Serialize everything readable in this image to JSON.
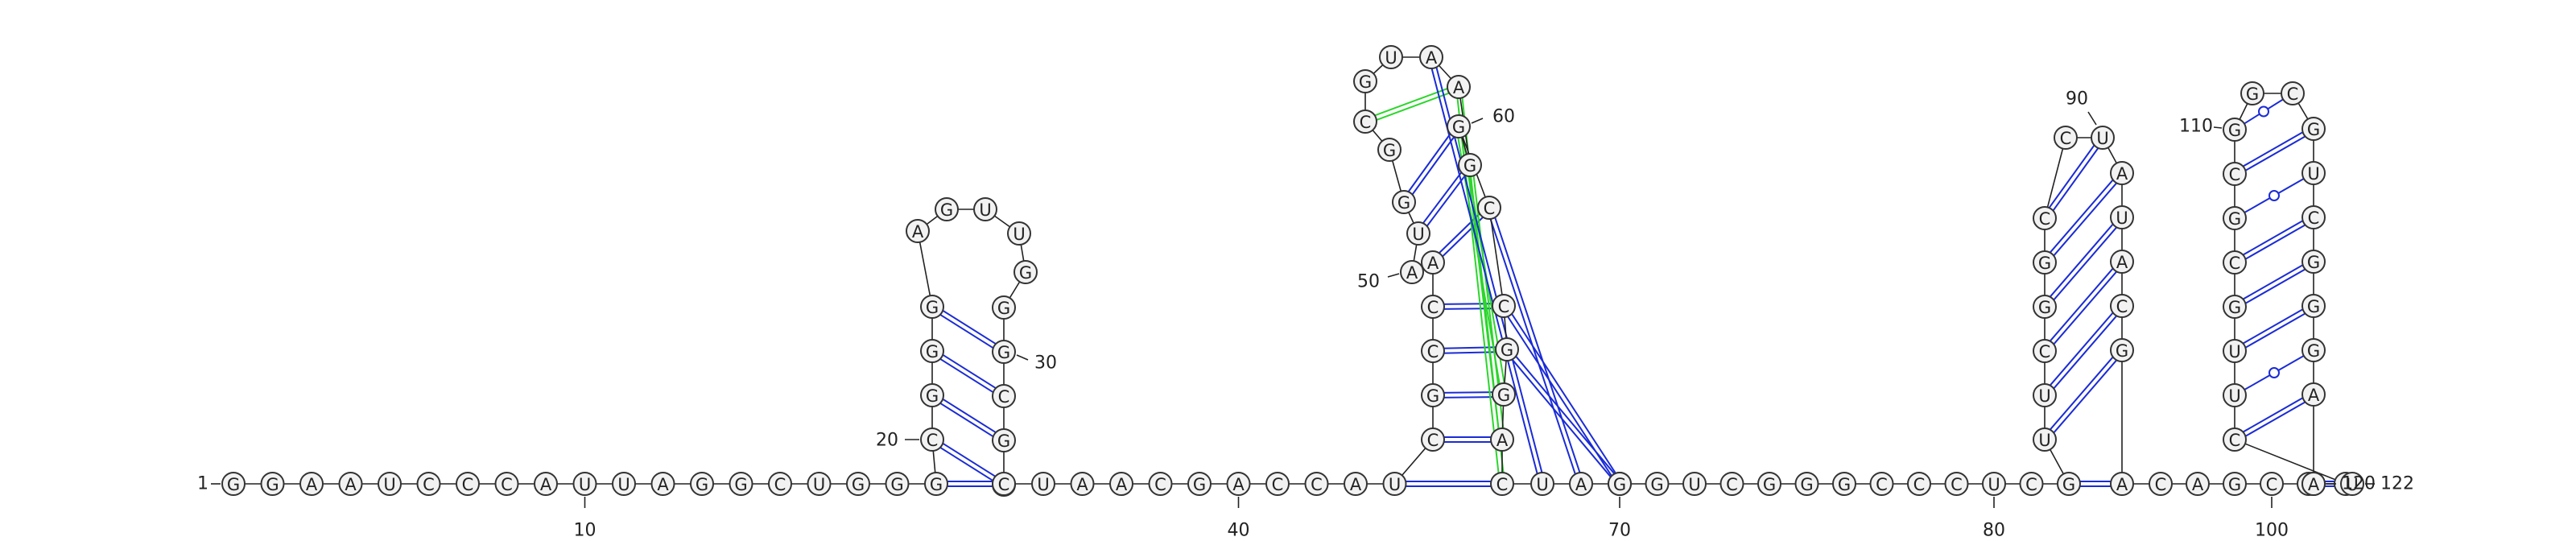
{
  "sequence": "GGAAUCCCAUUAGGCUGGGCGGGAGUUGGGCGCCUAACGACCAUCGCCAAUGGCGUAAGGCCGGACUAGGGUCGGGCCCUCGUUCGGCCUAUACGACAGCCCCUUGCGCGGCGUCGGGAUAUC",
  "numbering": [
    {
      "label": "1",
      "pos": 1
    },
    {
      "label": "10",
      "pos": 10
    },
    {
      "label": "20",
      "pos": 20
    },
    {
      "label": "30",
      "pos": 30
    },
    {
      "label": "40",
      "pos": 40
    },
    {
      "label": "50",
      "pos": 50
    },
    {
      "label": "60",
      "pos": 60
    },
    {
      "label": "70",
      "pos": 70
    },
    {
      "label": "80",
      "pos": 80
    },
    {
      "label": "90",
      "pos": 90
    },
    {
      "label": "100",
      "pos": 100
    },
    {
      "label": "110",
      "pos": 110
    },
    {
      "label": "120",
      "pos": 120
    },
    {
      "label": "122",
      "pos": 122
    }
  ],
  "base_pairs": [
    {
      "i": 19,
      "j": 34,
      "type": "canonical"
    },
    {
      "i": 20,
      "j": 33,
      "type": "canonical"
    },
    {
      "i": 21,
      "j": 32,
      "type": "canonical"
    },
    {
      "i": 22,
      "j": 31,
      "type": "canonical"
    },
    {
      "i": 23,
      "j": 30,
      "type": "canonical"
    },
    {
      "i": 44,
      "j": 66,
      "type": "canonical"
    },
    {
      "i": 45,
      "j": 65,
      "type": "canonical"
    },
    {
      "i": 46,
      "j": 64,
      "type": "canonical"
    },
    {
      "i": 47,
      "j": 63,
      "type": "canonical"
    },
    {
      "i": 48,
      "j": 62,
      "type": "canonical"
    },
    {
      "i": 49,
      "j": 61,
      "type": "canonical"
    },
    {
      "i": 51,
      "j": 59,
      "type": "canonical"
    },
    {
      "i": 52,
      "j": 60,
      "type": "canonical"
    },
    {
      "i": 54,
      "j": 58,
      "type": "noncanonical"
    },
    {
      "i": 58,
      "j": 66,
      "type": "noncanonical"
    },
    {
      "i": 59,
      "j": 65,
      "type": "noncanonical"
    },
    {
      "i": 60,
      "j": 64,
      "type": "noncanonical"
    },
    {
      "i": 57,
      "j": 67,
      "type": "canonical"
    },
    {
      "i": 61,
      "j": 68,
      "type": "canonical"
    },
    {
      "i": 62,
      "j": 69,
      "type": "canonical"
    },
    {
      "i": 63,
      "j": 70,
      "type": "canonical"
    },
    {
      "i": 82,
      "j": 96,
      "type": "canonical"
    },
    {
      "i": 83,
      "j": 95,
      "type": "canonical"
    },
    {
      "i": 84,
      "j": 94,
      "type": "canonical"
    },
    {
      "i": 85,
      "j": 93,
      "type": "canonical"
    },
    {
      "i": 86,
      "j": 92,
      "type": "canonical"
    },
    {
      "i": 87,
      "j": 91,
      "type": "canonical"
    },
    {
      "i": 88,
      "j": 90,
      "type": "canonical"
    },
    {
      "i": 89,
      "j": 89,
      "type": "wobble"
    },
    {
      "i": 102,
      "j": 120,
      "type": "canonical"
    },
    {
      "i": 103,
      "j": 119,
      "type": "canonical"
    },
    {
      "i": 104,
      "j": 118,
      "type": "wobble"
    },
    {
      "i": 105,
      "j": 117,
      "type": "canonical"
    },
    {
      "i": 106,
      "j": 116,
      "type": "canonical"
    },
    {
      "i": 107,
      "j": 115,
      "type": "canonical"
    },
    {
      "i": 108,
      "j": 114,
      "type": "wobble"
    },
    {
      "i": 109,
      "j": 113,
      "type": "canonical"
    },
    {
      "i": 110,
      "j": 112,
      "type": "wobble"
    }
  ],
  "colors": {
    "canonical_pair": "#1a2bd6",
    "noncanonical_pair": "#2bd62b",
    "backbone": "#222222",
    "nucleotide_fill": "#f2f2f2"
  }
}
